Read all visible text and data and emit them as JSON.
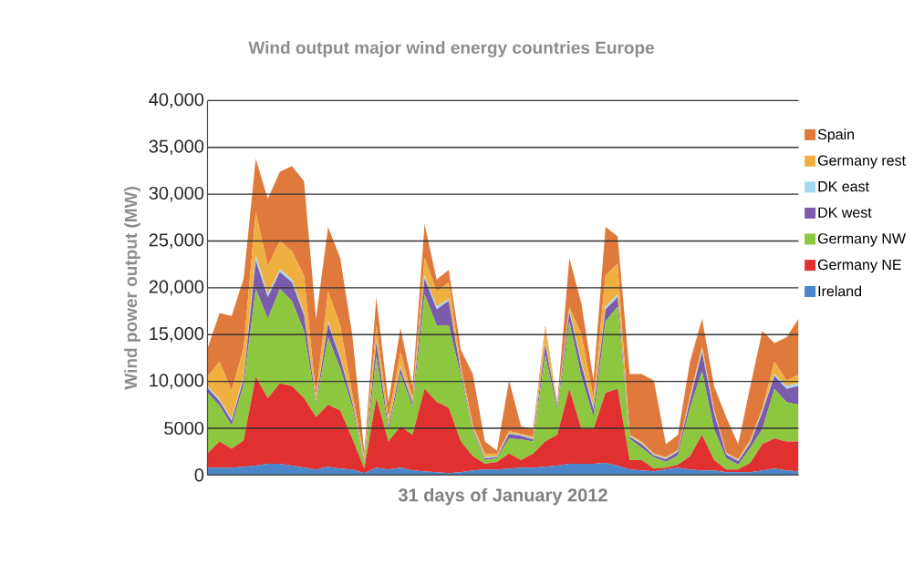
{
  "chart_data": {
    "type": "area",
    "stacked": true,
    "title": "Wind output major wind energy countries Europe",
    "xlabel": "31 days of January 2012",
    "ylabel": "Wind power output (MW)",
    "categories": [
      null,
      null,
      null,
      null,
      null,
      null,
      null,
      null,
      null,
      null,
      null,
      null,
      null,
      null,
      null,
      null,
      null,
      null,
      null,
      null,
      null,
      null,
      null,
      null,
      null,
      null,
      null,
      null,
      null,
      null,
      null,
      null,
      null,
      null,
      null,
      null,
      null,
      null,
      null,
      null,
      null,
      null,
      null,
      null,
      null,
      null,
      null,
      null,
      null,
      null
    ],
    "ylim": [
      0,
      40000
    ],
    "yticks": [
      0,
      5000,
      {
        "value": 10000,
        "label": "10,000"
      },
      {
        "value": 15000,
        "label": "15,000"
      },
      {
        "value": 20000,
        "label": "20,000"
      },
      {
        "value": 25000,
        "label": "25,000"
      },
      {
        "value": 30000,
        "label": "30,000"
      },
      {
        "value": 35000,
        "label": "35,000"
      },
      {
        "value": 40000,
        "label": "40,000"
      }
    ],
    "grid": "y",
    "legend": "right",
    "tick_labels": "y",
    "series": [
      {
        "name": "Ireland",
        "color": "#4a86c8",
        "values": [
          800,
          800,
          800,
          900,
          1000,
          1200,
          1200,
          1000,
          800,
          600,
          900,
          700,
          600,
          200,
          800,
          600,
          800,
          500,
          400,
          300,
          200,
          300,
          500,
          600,
          600,
          700,
          800,
          800,
          900,
          1000,
          1200,
          1200,
          1200,
          1300,
          1000,
          600,
          500,
          400,
          600,
          800,
          600,
          500,
          500,
          300,
          300,
          300,
          500,
          700,
          500,
          400
        ]
      },
      {
        "name": "Germany  NE",
        "color": "#e03030",
        "values": [
          1500,
          2800,
          2000,
          2800,
          9500,
          7000,
          8600,
          8500,
          7400,
          5600,
          6600,
          6200,
          3300,
          500,
          7400,
          3000,
          4400,
          3800,
          8800,
          7500,
          7000,
          3300,
          1500,
          600,
          800,
          1600,
          800,
          1500,
          2700,
          3300,
          8000,
          3700,
          3700,
          7500,
          8200,
          1000,
          1100,
          300,
          200,
          300,
          1400,
          3800,
          1100,
          300,
          300,
          1000,
          2800,
          3200,
          3100,
          3200
        ]
      },
      {
        "name": "Germany NW",
        "color": "#8dc63f",
        "values": [
          6500,
          3800,
          2500,
          6000,
          9400,
          8500,
          10100,
          9100,
          7200,
          1400,
          7200,
          4500,
          3400,
          600,
          4500,
          1200,
          5600,
          3000,
          10100,
          8200,
          8800,
          7000,
          2700,
          400,
          400,
          1600,
          2200,
          1300,
          9200,
          2600,
          7200,
          5600,
          1300,
          7600,
          8800,
          2300,
          1300,
          1200,
          600,
          1000,
          5200,
          6800,
          3300,
          1200,
          500,
          1600,
          1600,
          5300,
          4200,
          3900
        ]
      },
      {
        "name": "DK west",
        "color": "#7b5bab",
        "values": [
          500,
          500,
          500,
          600,
          3000,
          2300,
          1800,
          2000,
          1700,
          200,
          1500,
          1100,
          500,
          200,
          1500,
          400,
          600,
          400,
          1700,
          1700,
          2600,
          400,
          200,
          200,
          100,
          500,
          400,
          200,
          1100,
          400,
          1000,
          1300,
          800,
          1300,
          1000,
          200,
          400,
          200,
          300,
          400,
          800,
          2000,
          1700,
          400,
          400,
          500,
          1800,
          1400,
          1400,
          2000
        ]
      },
      {
        "name": "DK east",
        "color": "#a8d8ef",
        "values": [
          200,
          200,
          200,
          300,
          600,
          300,
          300,
          300,
          200,
          100,
          200,
          200,
          100,
          100,
          200,
          100,
          200,
          100,
          300,
          300,
          200,
          100,
          100,
          100,
          100,
          100,
          100,
          100,
          200,
          100,
          300,
          300,
          200,
          300,
          300,
          100,
          100,
          100,
          100,
          100,
          200,
          300,
          200,
          100,
          100,
          100,
          200,
          200,
          300,
          300
        ]
      },
      {
        "name": "Germany rest",
        "color": "#f0b040",
        "values": [
          1000,
          4000,
          3000,
          3000,
          4600,
          3000,
          3000,
          3000,
          4000,
          600,
          3200,
          3300,
          800,
          300,
          1600,
          800,
          1500,
          400,
          1900,
          1600,
          1800,
          600,
          300,
          400,
          200,
          200,
          100,
          200,
          1600,
          200,
          300,
          2900,
          1000,
          3300,
          3300,
          100,
          200,
          100,
          100,
          100,
          300,
          300,
          200,
          100,
          100,
          300,
          200,
          1300,
          600,
          900
        ]
      },
      {
        "name": "Spain",
        "color": "#e07a3c",
        "values": [
          3000,
          5200,
          8000,
          7400,
          5700,
          7200,
          7400,
          9100,
          10100,
          8200,
          6900,
          7200,
          6300,
          600,
          3000,
          1700,
          2600,
          1300,
          3600,
          1300,
          1300,
          1700,
          5500,
          1300,
          400,
          5400,
          800,
          800,
          300,
          200,
          5200,
          3300,
          1900,
          5200,
          2900,
          6500,
          7200,
          7800,
          1400,
          1600,
          3600,
          3000,
          2500,
          3800,
          1600,
          5700,
          8300,
          2000,
          4600,
          6000
        ]
      }
    ]
  }
}
